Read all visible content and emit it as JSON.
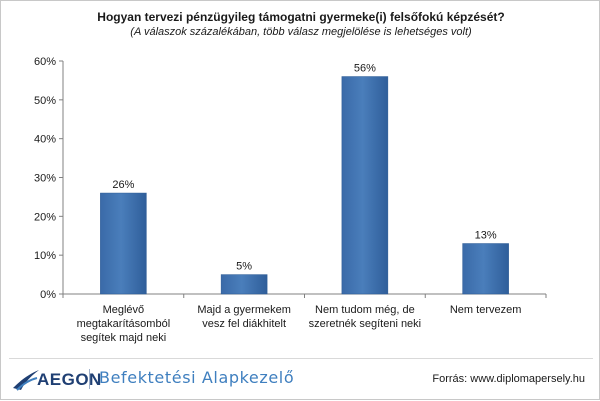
{
  "chart_data": {
    "type": "bar",
    "title": "Hogyan tervezi pénzügyileg támogatni gyermeke(i) felsőfokú képzését?",
    "subtitle": "(A válaszok százalékában, több válasz megjelölése is lehetséges volt)",
    "categories": [
      "Meglévő megtakarításomból segítek majd neki",
      "Majd a gyermekem vesz fel diákhitelt",
      "Nem tudom még, de szeretnék segíteni neki",
      "Nem tervezem"
    ],
    "category_lines": [
      [
        "Meglévő",
        "megtakarításomból",
        "segítek majd neki"
      ],
      [
        "Majd a gyermekem",
        "vesz fel diákhitelt"
      ],
      [
        "Nem tudom még, de",
        "szeretnék segíteni neki"
      ],
      [
        "Nem tervezem"
      ]
    ],
    "values": [
      26,
      5,
      56,
      13
    ],
    "data_labels": [
      "26%",
      "5%",
      "56%",
      "13%"
    ],
    "ylim": [
      0,
      60
    ],
    "yticks": [
      "0%",
      "10%",
      "20%",
      "30%",
      "40%",
      "50%",
      "60%"
    ],
    "grid": false,
    "legend": "none",
    "bar_color": "#4a7ebb"
  },
  "footer": {
    "logo_text": "AEGON",
    "brand": "Befektetési Alapkezelő",
    "source": "Forrás: www.diplomapersely.hu"
  },
  "colors": {
    "logo_blue": "#1f3f73",
    "brand_blue": "#3f7fbf"
  }
}
